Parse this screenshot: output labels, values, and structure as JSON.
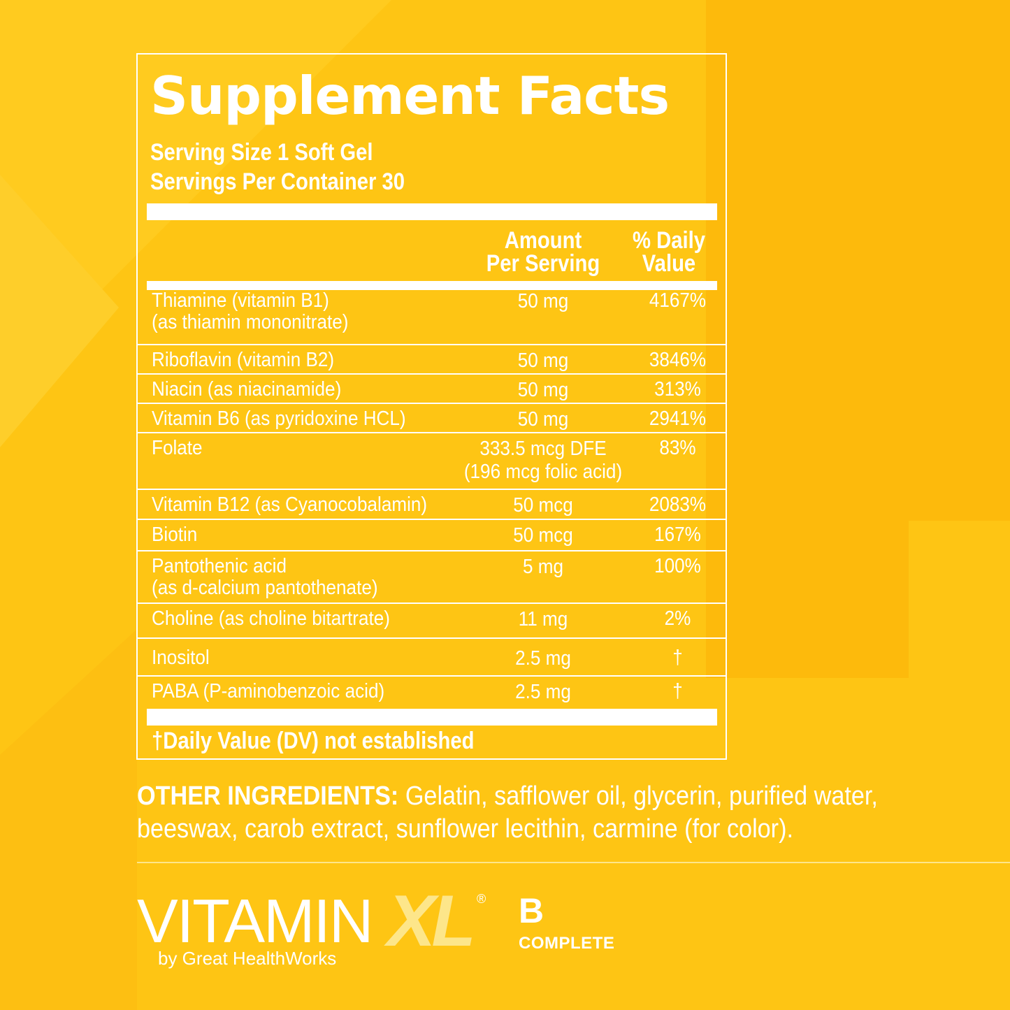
{
  "colors": {
    "background": "#FEC514",
    "text": "#FFFFFF",
    "logo_accent": "#FDE68A"
  },
  "panel": {
    "title": "Supplement Facts",
    "serving_size": "Serving Size 1 Soft Gel",
    "servings_per_container": "Servings Per Container 30",
    "col_amount": [
      "Amount",
      "Per Serving"
    ],
    "col_dv": [
      "% Daily",
      "Value"
    ],
    "rows": [
      {
        "name": [
          "Thiamine (vitamin B1)",
          "(as thiamin mononitrate)"
        ],
        "amount": [
          "50 mg"
        ],
        "dv": "4167%"
      },
      {
        "name": [
          "Riboflavin (vitamin B2)"
        ],
        "amount": [
          "50 mg"
        ],
        "dv": "3846%"
      },
      {
        "name": [
          "Niacin (as niacinamide)"
        ],
        "amount": [
          "50 mg"
        ],
        "dv": "313%"
      },
      {
        "name": [
          "Vitamin B6 (as pyridoxine HCL)"
        ],
        "amount": [
          "50 mg"
        ],
        "dv": "2941%"
      },
      {
        "name": [
          "Folate"
        ],
        "amount": [
          "333.5 mcg DFE",
          "(196 mcg folic acid)"
        ],
        "dv": "83%"
      },
      {
        "name": [
          "Vitamin B12 (as Cyanocobalamin)"
        ],
        "amount": [
          "50 mcg"
        ],
        "dv": "2083%"
      },
      {
        "name": [
          "Biotin"
        ],
        "amount": [
          "50 mcg"
        ],
        "dv": "167%"
      },
      {
        "name": [
          "Pantothenic acid",
          "(as d-calcium pantothenate)"
        ],
        "amount": [
          "5 mg"
        ],
        "dv": "100%"
      },
      {
        "name": [
          "Choline (as choline bitartrate)"
        ],
        "amount": [
          "11 mg"
        ],
        "dv": "2%"
      },
      {
        "name": [
          "Inositol"
        ],
        "amount": [
          "2.5 mg"
        ],
        "dv": "†"
      },
      {
        "name": [
          "PABA (P-aminobenzoic acid)"
        ],
        "amount": [
          "2.5 mg"
        ],
        "dv": "†"
      }
    ],
    "footnote": "†Daily Value (DV) not established"
  },
  "other_ingredients": {
    "label": "OTHER INGREDIENTS:",
    "text": " Gelatin, safflower oil, glycerin, purified water, beeswax, carob extract, sunflower lecithin, carmine (for color)."
  },
  "brand": {
    "vitamin": "VITAMIN",
    "xl": "XL",
    "registered": "®",
    "byline": "by Great HealthWorks",
    "product_letter": "B",
    "product_word": "COMPLETE"
  }
}
